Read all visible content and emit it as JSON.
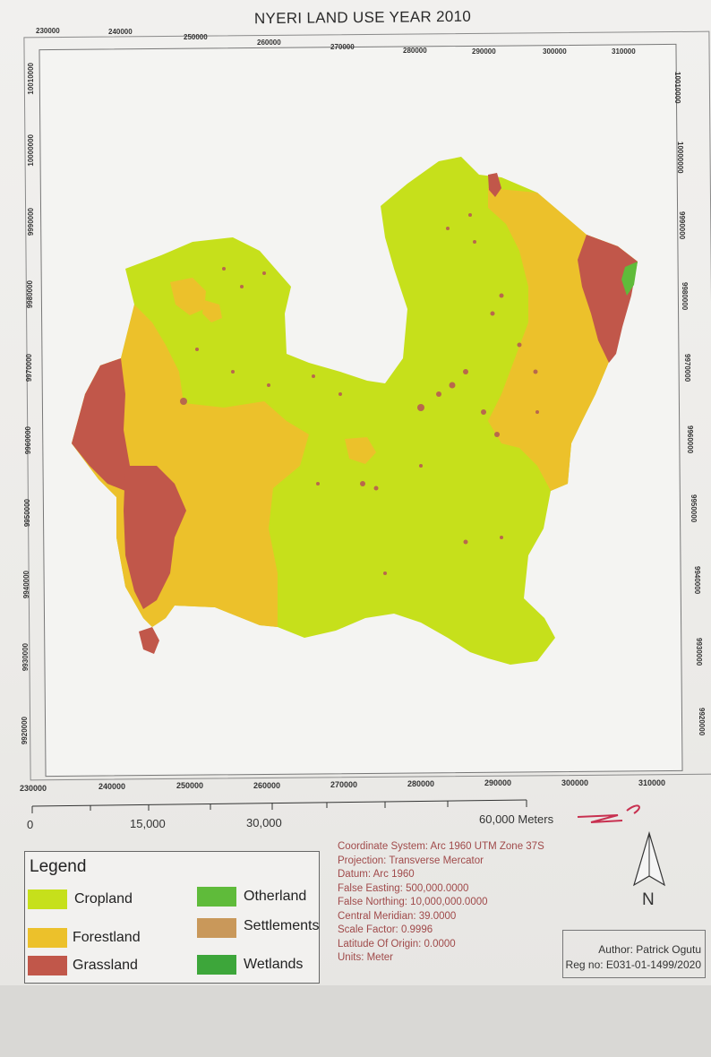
{
  "map": {
    "title": "NYERI LAND USE YEAR 2010",
    "easting_ticks_top": [
      "230000",
      "240000",
      "250000",
      "260000",
      "270000",
      "280000",
      "290000",
      "300000",
      "310000"
    ],
    "easting_ticks_bottom": [
      "230000",
      "240000",
      "250000",
      "260000",
      "270000",
      "280000",
      "290000",
      "300000",
      "310000"
    ],
    "northing_ticks_left": [
      "10010000",
      "10000000",
      "9990000",
      "9980000",
      "9970000",
      "9960000",
      "9950000",
      "9940000",
      "9930000",
      "9920000"
    ],
    "northing_ticks_right": [
      "10010000",
      "10000000",
      "9990000",
      "9980000",
      "9970000",
      "9960000",
      "9950000",
      "9940000",
      "9930000",
      "9920000"
    ]
  },
  "scale_bar": {
    "labels": [
      "0",
      "15,000",
      "30,000",
      "60,000 Meters"
    ]
  },
  "legend": {
    "title": "Legend",
    "items": [
      {
        "label": "Cropland",
        "color": "#c6e01b"
      },
      {
        "label": "Forestland",
        "color": "#ecc12b"
      },
      {
        "label": "Grassland",
        "color": "#c1574a"
      },
      {
        "label": "Otherland",
        "color": "#5fbb3a"
      },
      {
        "label": "Settlements",
        "color": "#c9985a"
      },
      {
        "label": "Wetlands",
        "color": "#3da63a"
      }
    ]
  },
  "crs_info": [
    "Coordinate System: Arc 1960 UTM Zone 37S",
    "Projection: Transverse Mercator",
    "Datum: Arc 1960",
    "False Easting: 500,000.0000",
    "False Northing: 10,000,000.0000",
    "Central Meridian: 39.0000",
    "Scale Factor: 0.9996",
    "Latitude Of Origin: 0.0000",
    "Units: Meter"
  ],
  "north_arrow": {
    "label": "N"
  },
  "author": {
    "name": "Author: Patrick Ogutu",
    "reg": "Reg no: E031-01-1499/2020"
  }
}
